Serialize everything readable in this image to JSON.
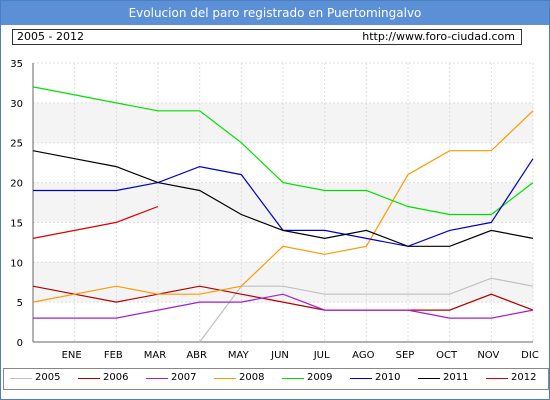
{
  "header": {
    "title": "Evolucion del paro registrado en Puertomingalvo",
    "period": "2005 - 2012",
    "url": "http://www.foro-ciudad.com"
  },
  "chart_data": {
    "type": "line",
    "title": "Evolucion del paro registrado en Puertomingalvo",
    "xlabel": "",
    "ylabel": "",
    "categories": [
      "ENE",
      "FEB",
      "MAR",
      "ABR",
      "MAY",
      "JUN",
      "JUL",
      "AGO",
      "SEP",
      "OCT",
      "NOV",
      "DIC"
    ],
    "y_ticks": [
      "0",
      "5",
      "10",
      "15",
      "20",
      "25",
      "30",
      "35"
    ],
    "ylim": [
      0,
      35
    ],
    "grid": true,
    "legend_position": "bottom",
    "series": [
      {
        "name": "2005",
        "color": "#c0c0c0",
        "values": [
          null,
          null,
          null,
          0,
          7,
          7,
          6,
          6,
          6,
          6,
          8,
          7
        ]
      },
      {
        "name": "2006",
        "color": "#b30000",
        "values": [
          6,
          5,
          6,
          7,
          6,
          5,
          4,
          4,
          4,
          4,
          6,
          4
        ]
      },
      {
        "name": "2007",
        "color": "#a020d0",
        "values": [
          3,
          3,
          4,
          5,
          5,
          6,
          4,
          4,
          4,
          3,
          3,
          4
        ]
      },
      {
        "name": "2008",
        "color": "#ff9900",
        "values": [
          6,
          7,
          6,
          6,
          7,
          12,
          11,
          12,
          21,
          24,
          24,
          29
        ]
      },
      {
        "name": "2009",
        "color": "#00e000",
        "values": [
          31,
          30,
          29,
          29,
          25,
          20,
          19,
          19,
          17,
          16,
          16,
          20
        ]
      },
      {
        "name": "2010",
        "color": "#0000cc",
        "values": [
          19,
          19,
          20,
          22,
          21,
          14,
          14,
          13,
          12,
          14,
          15,
          23
        ]
      },
      {
        "name": "2011",
        "color": "#000000",
        "values": [
          23,
          22,
          20,
          19,
          16,
          14,
          13,
          14,
          12,
          12,
          14,
          13
        ]
      },
      {
        "name": "2012",
        "color": "#dd0000",
        "values": [
          14,
          15,
          17,
          null,
          null,
          null,
          null,
          null,
          null,
          null,
          null,
          null
        ]
      }
    ]
  }
}
